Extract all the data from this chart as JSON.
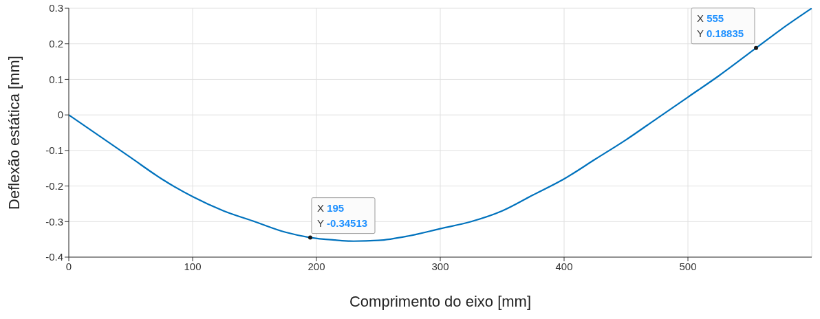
{
  "chart_data": {
    "type": "line",
    "xlabel": "Comprimento do eixo [mm]",
    "ylabel": "Deflexão estática [mm]",
    "x": [
      0,
      25,
      50,
      75,
      100,
      125,
      150,
      175,
      195,
      215,
      230,
      250,
      275,
      300,
      325,
      350,
      375,
      400,
      425,
      450,
      475,
      500,
      525,
      555,
      575,
      600
    ],
    "series": [
      {
        "color": "#0072bd",
        "values": [
          0,
          -0.06,
          -0.12,
          -0.18,
          -0.23,
          -0.27,
          -0.3,
          -0.33,
          -0.345,
          -0.352,
          -0.355,
          -0.353,
          -0.34,
          -0.32,
          -0.3,
          -0.27,
          -0.225,
          -0.18,
          -0.125,
          -0.07,
          -0.01,
          0.05,
          0.11,
          0.188,
          0.24,
          0.3
        ]
      }
    ],
    "xlim": [
      0,
      600
    ],
    "xticks": [
      0,
      100,
      200,
      300,
      400,
      500
    ],
    "ylim": [
      -0.4,
      0.3
    ],
    "yticks": [
      -0.4,
      -0.3,
      -0.2,
      -0.1,
      0,
      0.1,
      0.2,
      0.3
    ],
    "grid": true,
    "marker": "none",
    "line_style": "solid",
    "annotations": [
      {
        "text": "X 195\nY -0.34513",
        "x": 195,
        "y": -0.34513
      },
      {
        "text": "X 555\nY 0.18835",
        "x": 555,
        "y": 0.18835
      }
    ]
  }
}
